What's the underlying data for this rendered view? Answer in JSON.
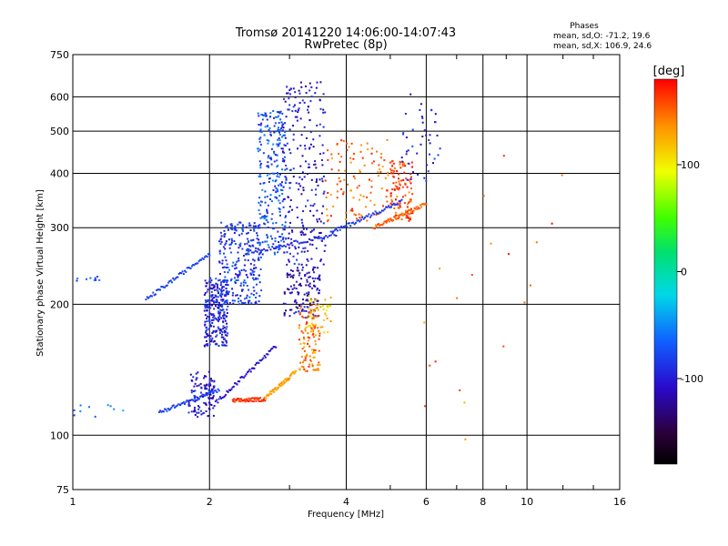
{
  "chart_data": {
    "type": "scatter",
    "title": "Tromsø 20141220 14:06:00-14:07:43",
    "subtitle": "RwPretec (8p)",
    "phase_box": {
      "heading": "Phases",
      "line1": "mean, sd,O: -71.2, 19.6",
      "line2": "mean, sd,X: 106.9, 24.6"
    },
    "xlabel": "Frequency [MHz]",
    "ylabel": "Stationary phase Virtual Height [km]",
    "x_scale": "log",
    "y_scale": "log",
    "xlim": [
      1,
      16
    ],
    "ylim": [
      75,
      750
    ],
    "x_ticks": [
      {
        "v": 1,
        "label": "1"
      },
      {
        "v": 2,
        "label": "2"
      },
      {
        "v": 4,
        "label": "4"
      },
      {
        "v": 6,
        "label": "6"
      },
      {
        "v": 8,
        "label": "8"
      },
      {
        "v": 10,
        "label": "10"
      },
      {
        "v": 16,
        "label": "16"
      }
    ],
    "x_grid": [
      2,
      4,
      6,
      8,
      10
    ],
    "x_minor": [
      3,
      5,
      7,
      9,
      12,
      14
    ],
    "y_ticks": [
      {
        "v": 75,
        "label": "75"
      },
      {
        "v": 100,
        "label": "100"
      },
      {
        "v": 200,
        "label": "200"
      },
      {
        "v": 300,
        "label": "300"
      },
      {
        "v": 400,
        "label": "400"
      },
      {
        "v": 500,
        "label": "500"
      },
      {
        "v": 600,
        "label": "600"
      },
      {
        "v": 750,
        "label": "750"
      }
    ],
    "y_grid": [
      100,
      200,
      300,
      400,
      500,
      600
    ],
    "grid": true,
    "colorbar": {
      "unit": "[deg]",
      "min": -180,
      "max": 180,
      "ticks": [
        {
          "v": 100,
          "label": "100"
        },
        {
          "v": 0,
          "label": "0"
        },
        {
          "v": -100,
          "label": "-100"
        }
      ]
    },
    "trace_clusters": [
      {
        "f": [
          1.8,
          2.05
        ],
        "h": [
          110,
          140
        ],
        "phase": -105,
        "density": "medium"
      },
      {
        "f": [
          1.95,
          2.2
        ],
        "h": [
          160,
          230
        ],
        "phase": -95,
        "density": "high"
      },
      {
        "f": [
          2.1,
          2.6
        ],
        "h": [
          200,
          310
        ],
        "phase": -85,
        "density": "high"
      },
      {
        "f": [
          2.55,
          2.95
        ],
        "h": [
          260,
          560
        ],
        "phase": -75,
        "density": "high"
      },
      {
        "f": [
          2.9,
          3.6
        ],
        "h": [
          220,
          650
        ],
        "phase": -105,
        "density": "high"
      },
      {
        "f": [
          2.9,
          3.5
        ],
        "h": [
          185,
          240
        ],
        "phase": -115,
        "density": "medium"
      },
      {
        "f": [
          3.15,
          3.5
        ],
        "h": [
          140,
          200
        ],
        "phase": 145,
        "density": "medium"
      },
      {
        "f": [
          3.3,
          3.7
        ],
        "h": [
          170,
          210
        ],
        "phase": 115,
        "density": "low"
      },
      {
        "f": [
          3.6,
          5.0
        ],
        "h": [
          310,
          480
        ],
        "phase": 150,
        "density": "medium"
      },
      {
        "f": [
          5.0,
          5.6
        ],
        "h": [
          310,
          430
        ],
        "phase": 160,
        "density": "medium"
      },
      {
        "f": [
          5.3,
          6.5
        ],
        "h": [
          380,
          620
        ],
        "phase": -100,
        "density": "low"
      },
      {
        "f": [
          5.8,
          7.6
        ],
        "h": [
          90,
          260
        ],
        "phase": 150,
        "density": "sparse"
      },
      {
        "f": [
          8,
          12
        ],
        "h": [
          150,
          640
        ],
        "phase": 160,
        "density": "sparse"
      },
      {
        "f": [
          1.0,
          1.3
        ],
        "h": [
          110,
          118
        ],
        "phase": -60,
        "density": "sparse"
      },
      {
        "f": [
          1.0,
          1.15
        ],
        "h": [
          225,
          232
        ],
        "phase": -75,
        "density": "sparse"
      }
    ],
    "trace_lines": [
      {
        "f0": 1.55,
        "h0": 113,
        "f1": 2.1,
        "h1": 127,
        "phase": -80
      },
      {
        "f0": 2.05,
        "h0": 118,
        "f1": 2.8,
        "h1": 160,
        "phase": -105
      },
      {
        "f0": 1.45,
        "h0": 205,
        "f1": 2.0,
        "h1": 262,
        "phase": -80
      },
      {
        "f0": 2.4,
        "h0": 262,
        "f1": 3.8,
        "h1": 290,
        "phase": -90
      },
      {
        "f0": 3.7,
        "h0": 292,
        "f1": 5.3,
        "h1": 345,
        "phase": -85
      },
      {
        "f0": 4.6,
        "h0": 300,
        "f1": 6.0,
        "h1": 340,
        "phase": 150
      },
      {
        "f0": 2.25,
        "h0": 120,
        "f1": 2.65,
        "h1": 121,
        "phase": 165
      },
      {
        "f0": 2.65,
        "h0": 122,
        "f1": 3.1,
        "h1": 140,
        "phase": 130
      }
    ]
  }
}
